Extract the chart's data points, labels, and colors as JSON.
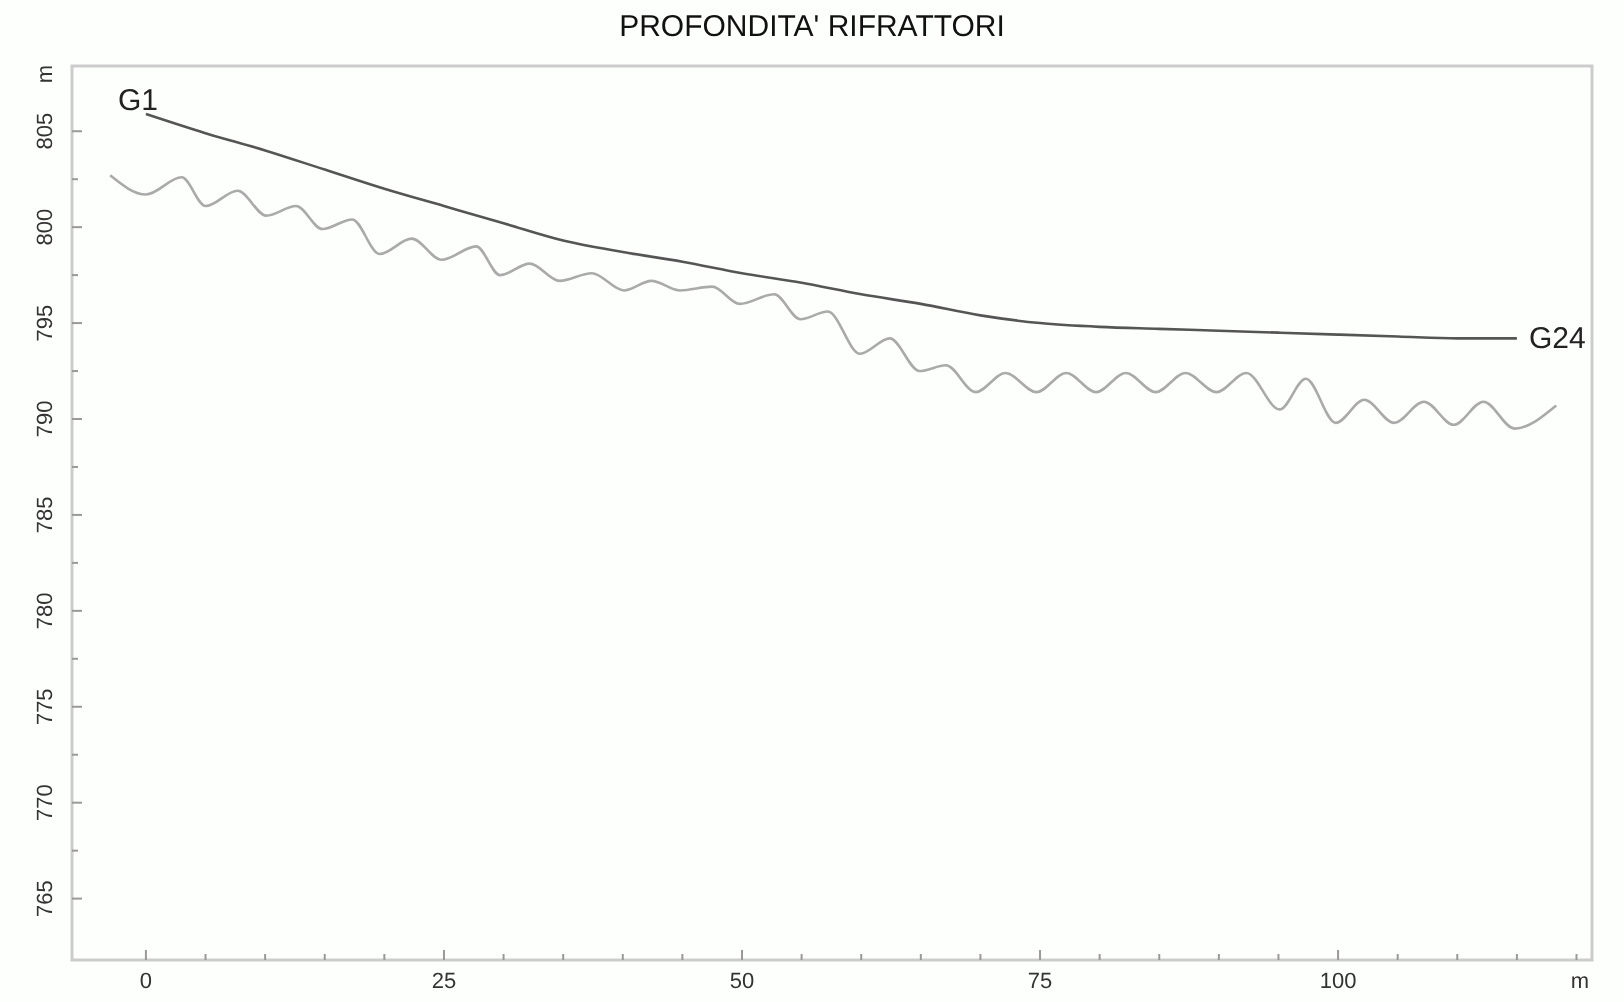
{
  "chart_data": {
    "type": "line",
    "title": "PROFONDITA' RIFRATTORI",
    "xlabel": "m",
    "ylabel": "m",
    "xlim": [
      -6.2,
      121.3
    ],
    "ylim": [
      761.8,
      808.4
    ],
    "xticks": [
      0,
      {
        "value": 5,
        "label": null
      },
      {
        "value": 10,
        "label": null
      },
      {
        "value": 15,
        "label": null
      },
      {
        "value": 20,
        "label": null
      },
      25,
      {
        "value": 30,
        "label": null
      },
      {
        "value": 35,
        "label": null
      },
      {
        "value": 40,
        "label": null
      },
      {
        "value": 45,
        "label": null
      },
      50,
      {
        "value": 55,
        "label": null
      },
      {
        "value": 60,
        "label": null
      },
      {
        "value": 65,
        "label": null
      },
      {
        "value": 70,
        "label": null
      },
      75,
      {
        "value": 80,
        "label": null
      },
      {
        "value": 85,
        "label": null
      },
      {
        "value": 90,
        "label": null
      },
      {
        "value": 95,
        "label": null
      },
      100,
      {
        "value": 105,
        "label": null
      },
      {
        "value": 110,
        "label": null
      },
      {
        "value": 115,
        "label": null
      },
      {
        "value": 120,
        "label": null
      }
    ],
    "yticks": [
      765,
      {
        "value": 767.5,
        "label": null
      },
      770,
      {
        "value": 772.5,
        "label": null
      },
      775,
      {
        "value": 777.5,
        "label": null
      },
      780,
      {
        "value": 782.5,
        "label": null
      },
      785,
      {
        "value": 787.5,
        "label": null
      },
      790,
      {
        "value": 792.5,
        "label": null
      },
      795,
      {
        "value": 797.5,
        "label": null
      },
      800,
      {
        "value": 802.5,
        "label": null
      },
      805
    ],
    "grid": false,
    "marker": "none",
    "line_style": "solid",
    "series": [
      {
        "color": "#555555",
        "x": [
          0,
          5,
          10,
          15,
          20,
          25,
          30,
          35,
          40,
          45,
          50,
          55,
          60,
          65,
          70,
          75,
          80,
          85,
          90,
          95,
          100,
          105,
          110,
          115
        ],
        "values": [
          805.9,
          804.9,
          804.0,
          803.0,
          802.0,
          801.1,
          800.2,
          799.3,
          798.7,
          798.2,
          797.6,
          797.1,
          796.5,
          796.0,
          795.4,
          795.0,
          794.8,
          794.7,
          794.6,
          794.5,
          794.4,
          794.3,
          794.2,
          794.2
        ]
      },
      {
        "color": "#aaaaaa",
        "x": [
          -3.0,
          0.0,
          3.0,
          5.0,
          7.7,
          10.1,
          12.6,
          14.8,
          17.3,
          19.6,
          22.3,
          24.8,
          27.7,
          29.7,
          32.2,
          34.7,
          37.4,
          40.1,
          42.4,
          44.8,
          47.5,
          49.8,
          52.7,
          54.9,
          57.2,
          59.9,
          62.4,
          64.9,
          67.1,
          69.6,
          72.1,
          74.7,
          77.2,
          79.7,
          82.2,
          84.7,
          87.2,
          89.8,
          92.3,
          95.1,
          97.3,
          99.8,
          102.2,
          104.7,
          107.2,
          109.7,
          112.2,
          114.8,
          118.3
        ],
        "values": [
          802.7,
          801.7,
          802.6,
          801.1,
          801.9,
          800.6,
          801.1,
          799.9,
          800.4,
          798.6,
          799.4,
          798.3,
          799.0,
          797.5,
          798.1,
          797.2,
          797.6,
          796.7,
          797.2,
          796.7,
          796.9,
          796.0,
          796.5,
          795.2,
          795.6,
          793.4,
          794.2,
          792.5,
          792.8,
          791.4,
          792.4,
          791.4,
          792.4,
          791.4,
          792.4,
          791.4,
          792.4,
          791.4,
          792.4,
          790.5,
          792.1,
          789.8,
          791.0,
          789.8,
          790.9,
          789.7,
          790.9,
          789.5,
          790.7
        ]
      }
    ],
    "annotations": [
      {
        "text": "G1",
        "x": 0,
        "y": 805.9
      },
      {
        "text": "G24",
        "x": 115,
        "y": 794.2
      }
    ]
  }
}
